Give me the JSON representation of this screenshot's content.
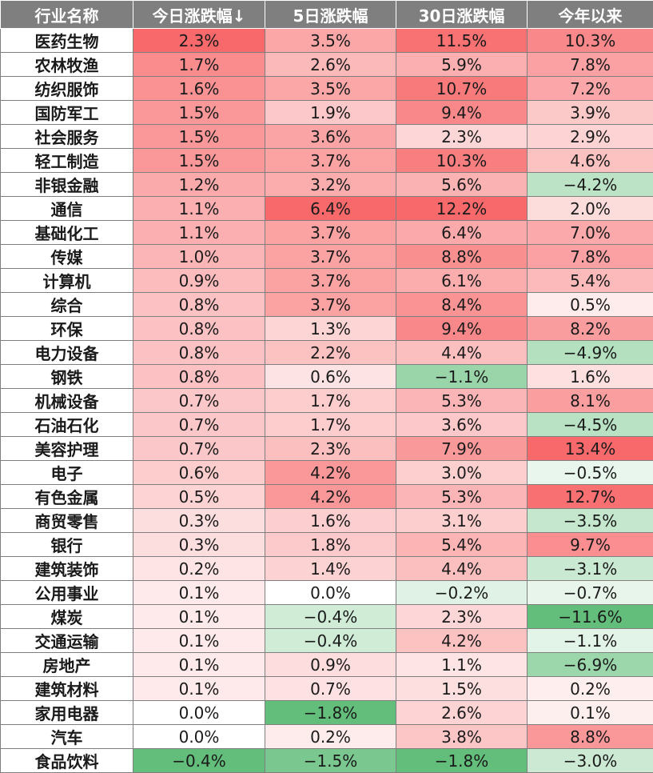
{
  "headers": [
    "行业名称",
    "今日涨跌幅↓",
    "5日涨跌幅",
    "30日涨跌幅",
    "今年以来"
  ],
  "rows": [
    {
      "name": "医药生物",
      "today": 2.3,
      "d5": 3.5,
      "d30": 11.5,
      "ytd": 10.3
    },
    {
      "name": "农林牧渔",
      "today": 1.7,
      "d5": 2.6,
      "d30": 5.9,
      "ytd": 7.8
    },
    {
      "name": "纺织服饰",
      "today": 1.6,
      "d5": 3.5,
      "d30": 10.7,
      "ytd": 7.2
    },
    {
      "name": "国防军工",
      "today": 1.5,
      "d5": 1.9,
      "d30": 9.4,
      "ytd": 3.9
    },
    {
      "name": "社会服务",
      "today": 1.5,
      "d5": 3.6,
      "d30": 2.3,
      "ytd": 2.9
    },
    {
      "name": "轻工制造",
      "today": 1.5,
      "d5": 3.7,
      "d30": 10.3,
      "ytd": 4.6
    },
    {
      "name": "非银金融",
      "today": 1.2,
      "d5": 3.2,
      "d30": 5.6,
      "ytd": -4.2
    },
    {
      "name": "通信",
      "today": 1.1,
      "d5": 6.4,
      "d30": 12.2,
      "ytd": 2.0
    },
    {
      "name": "基础化工",
      "today": 1.1,
      "d5": 3.7,
      "d30": 6.4,
      "ytd": 7.0
    },
    {
      "name": "传媒",
      "today": 1.0,
      "d5": 3.7,
      "d30": 8.8,
      "ytd": 7.8
    },
    {
      "name": "计算机",
      "today": 0.9,
      "d5": 3.7,
      "d30": 6.1,
      "ytd": 5.4
    },
    {
      "name": "综合",
      "today": 0.8,
      "d5": 3.7,
      "d30": 8.4,
      "ytd": 0.5
    },
    {
      "name": "环保",
      "today": 0.8,
      "d5": 1.3,
      "d30": 9.4,
      "ytd": 8.2
    },
    {
      "name": "电力设备",
      "today": 0.8,
      "d5": 2.2,
      "d30": 4.4,
      "ytd": -4.9
    },
    {
      "name": "钢铁",
      "today": 0.8,
      "d5": 0.6,
      "d30": -1.1,
      "ytd": 1.6
    },
    {
      "name": "机械设备",
      "today": 0.7,
      "d5": 1.7,
      "d30": 5.3,
      "ytd": 8.1
    },
    {
      "name": "石油石化",
      "today": 0.7,
      "d5": 1.7,
      "d30": 3.6,
      "ytd": -4.5
    },
    {
      "name": "美容护理",
      "today": 0.7,
      "d5": 2.3,
      "d30": 7.9,
      "ytd": 13.4
    },
    {
      "name": "电子",
      "today": 0.6,
      "d5": 4.2,
      "d30": 3.0,
      "ytd": -0.5
    },
    {
      "name": "有色金属",
      "today": 0.5,
      "d5": 4.2,
      "d30": 5.3,
      "ytd": 12.7
    },
    {
      "name": "商贸零售",
      "today": 0.3,
      "d5": 1.6,
      "d30": 3.1,
      "ytd": -3.5
    },
    {
      "name": "银行",
      "today": 0.3,
      "d5": 1.8,
      "d30": 5.4,
      "ytd": 9.7
    },
    {
      "name": "建筑装饰",
      "today": 0.2,
      "d5": 1.4,
      "d30": 4.4,
      "ytd": -3.1
    },
    {
      "name": "公用事业",
      "today": 0.1,
      "d5": 0.0,
      "d30": -0.2,
      "ytd": -0.7
    },
    {
      "name": "煤炭",
      "today": 0.1,
      "d5": -0.4,
      "d30": 2.3,
      "ytd": -11.6
    },
    {
      "name": "交通运输",
      "today": 0.1,
      "d5": -0.4,
      "d30": 4.2,
      "ytd": -1.1
    },
    {
      "name": "房地产",
      "today": 0.1,
      "d5": 0.9,
      "d30": 1.1,
      "ytd": -6.9
    },
    {
      "name": "建筑材料",
      "today": 0.1,
      "d5": 0.7,
      "d30": 1.5,
      "ytd": 0.2
    },
    {
      "name": "家用电器",
      "today": 0.0,
      "d5": -1.8,
      "d30": 2.6,
      "ytd": 0.1
    },
    {
      "name": "汽车",
      "today": 0.0,
      "d5": 0.2,
      "d30": 3.8,
      "ytd": 8.8
    },
    {
      "name": "食品饮料",
      "today": -0.4,
      "d5": -1.5,
      "d30": -1.8,
      "ytd": -3.0
    }
  ],
  "colors": {
    "header_bg": "#7f7f7f",
    "header_text": "#ffffff",
    "positive_max": "#f8696b",
    "negative_max": "#63be7b",
    "neutral": "#ffffff"
  }
}
